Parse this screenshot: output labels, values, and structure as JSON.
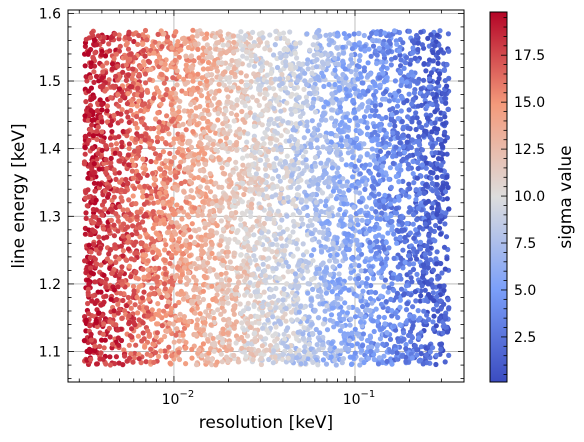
{
  "chart_data": {
    "type": "scatter",
    "xlabel": "resolution [keV]",
    "ylabel": "line energy [keV]",
    "x_scale": "log",
    "xlim": [
      0.0026,
      0.4
    ],
    "ylim": [
      1.055,
      1.605
    ],
    "x_ticks": [
      {
        "value": 0.01,
        "base": "10",
        "exp": "−2"
      },
      {
        "value": 0.1,
        "base": "10",
        "exp": "−1"
      }
    ],
    "y_ticks": [
      {
        "value": 1.1,
        "label": "1.1"
      },
      {
        "value": 1.2,
        "label": "1.2"
      },
      {
        "value": 1.3,
        "label": "1.3"
      },
      {
        "value": 1.4,
        "label": "1.4"
      },
      {
        "value": 1.5,
        "label": "1.5"
      },
      {
        "value": 1.6,
        "label": "1.6"
      }
    ],
    "grid": true,
    "colorbar": {
      "label": "sigma value",
      "colormap": "coolwarm",
      "range": [
        0.1,
        19.8
      ],
      "ticks": [
        {
          "value": 2.5,
          "label": "2.5"
        },
        {
          "value": 5.0,
          "label": "5.0"
        },
        {
          "value": 7.5,
          "label": "7.5"
        },
        {
          "value": 10.0,
          "label": "10.0"
        },
        {
          "value": 12.5,
          "label": "12.5"
        },
        {
          "value": 15.0,
          "label": "15.0"
        },
        {
          "value": 17.5,
          "label": "17.5"
        }
      ]
    },
    "points_summary": {
      "count_approx": 6000,
      "x_range": [
        0.0032,
        0.33
      ],
      "y_range": [
        1.08,
        1.575
      ],
      "sigma_trend": "sigma decreases with increasing resolution: ~19 at 0.003 keV, ~10 at 0.015 keV, ~1 at 0.3 keV"
    }
  }
}
